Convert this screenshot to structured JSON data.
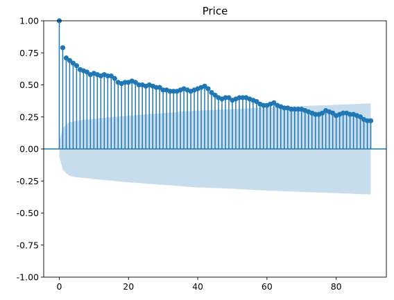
{
  "chart_data": {
    "type": "stem",
    "title": "Price",
    "xlabel": "",
    "ylabel": "",
    "xlim": [
      -4.5,
      94.5
    ],
    "ylim": [
      -1.0,
      1.0
    ],
    "x_ticks": [
      0,
      20,
      40,
      60,
      80
    ],
    "y_ticks": [
      "-1.00",
      "-0.75",
      "-0.50",
      "-0.25",
      "0.00",
      "0.25",
      "0.50",
      "0.75",
      "1.00"
    ],
    "grid": false,
    "colors": {
      "stem": "#1f77b4",
      "confidence_band": "#1f77b4",
      "confidence_opacity": 0.25
    },
    "lags": [
      0,
      1,
      2,
      3,
      4,
      5,
      6,
      7,
      8,
      9,
      10,
      11,
      12,
      13,
      14,
      15,
      16,
      17,
      18,
      19,
      20,
      21,
      22,
      23,
      24,
      25,
      26,
      27,
      28,
      29,
      30,
      31,
      32,
      33,
      34,
      35,
      36,
      37,
      38,
      39,
      40,
      41,
      42,
      43,
      44,
      45,
      46,
      47,
      48,
      49,
      50,
      51,
      52,
      53,
      54,
      55,
      56,
      57,
      58,
      59,
      60,
      61,
      62,
      63,
      64,
      65,
      66,
      67,
      68,
      69,
      70,
      71,
      72,
      73,
      74,
      75,
      76,
      77,
      78,
      79,
      80,
      81,
      82,
      83,
      84,
      85,
      86,
      87,
      88,
      89,
      90
    ],
    "acf": [
      1.0,
      0.79,
      0.71,
      0.69,
      0.67,
      0.65,
      0.62,
      0.61,
      0.6,
      0.58,
      0.59,
      0.58,
      0.57,
      0.58,
      0.57,
      0.57,
      0.55,
      0.52,
      0.51,
      0.52,
      0.52,
      0.53,
      0.52,
      0.5,
      0.5,
      0.49,
      0.5,
      0.49,
      0.48,
      0.48,
      0.46,
      0.46,
      0.45,
      0.45,
      0.45,
      0.46,
      0.47,
      0.46,
      0.45,
      0.46,
      0.47,
      0.48,
      0.49,
      0.47,
      0.44,
      0.42,
      0.4,
      0.39,
      0.4,
      0.4,
      0.38,
      0.39,
      0.4,
      0.4,
      0.4,
      0.39,
      0.38,
      0.37,
      0.35,
      0.34,
      0.34,
      0.35,
      0.36,
      0.34,
      0.33,
      0.32,
      0.32,
      0.31,
      0.31,
      0.31,
      0.31,
      0.3,
      0.29,
      0.28,
      0.27,
      0.27,
      0.28,
      0.3,
      0.29,
      0.28,
      0.26,
      0.27,
      0.28,
      0.28,
      0.27,
      0.27,
      0.26,
      0.25,
      0.23,
      0.22,
      0.22
    ],
    "confidence_band": {
      "lags": [
        0,
        1,
        2,
        3,
        5,
        10,
        20,
        30,
        40,
        50,
        60,
        70,
        80,
        90
      ],
      "upper": [
        0.06,
        0.16,
        0.19,
        0.21,
        0.22,
        0.235,
        0.26,
        0.28,
        0.3,
        0.31,
        0.325,
        0.335,
        0.345,
        0.355
      ],
      "lower": [
        -0.06,
        -0.16,
        -0.19,
        -0.21,
        -0.22,
        -0.235,
        -0.26,
        -0.28,
        -0.3,
        -0.31,
        -0.325,
        -0.335,
        -0.345,
        -0.355
      ]
    }
  }
}
